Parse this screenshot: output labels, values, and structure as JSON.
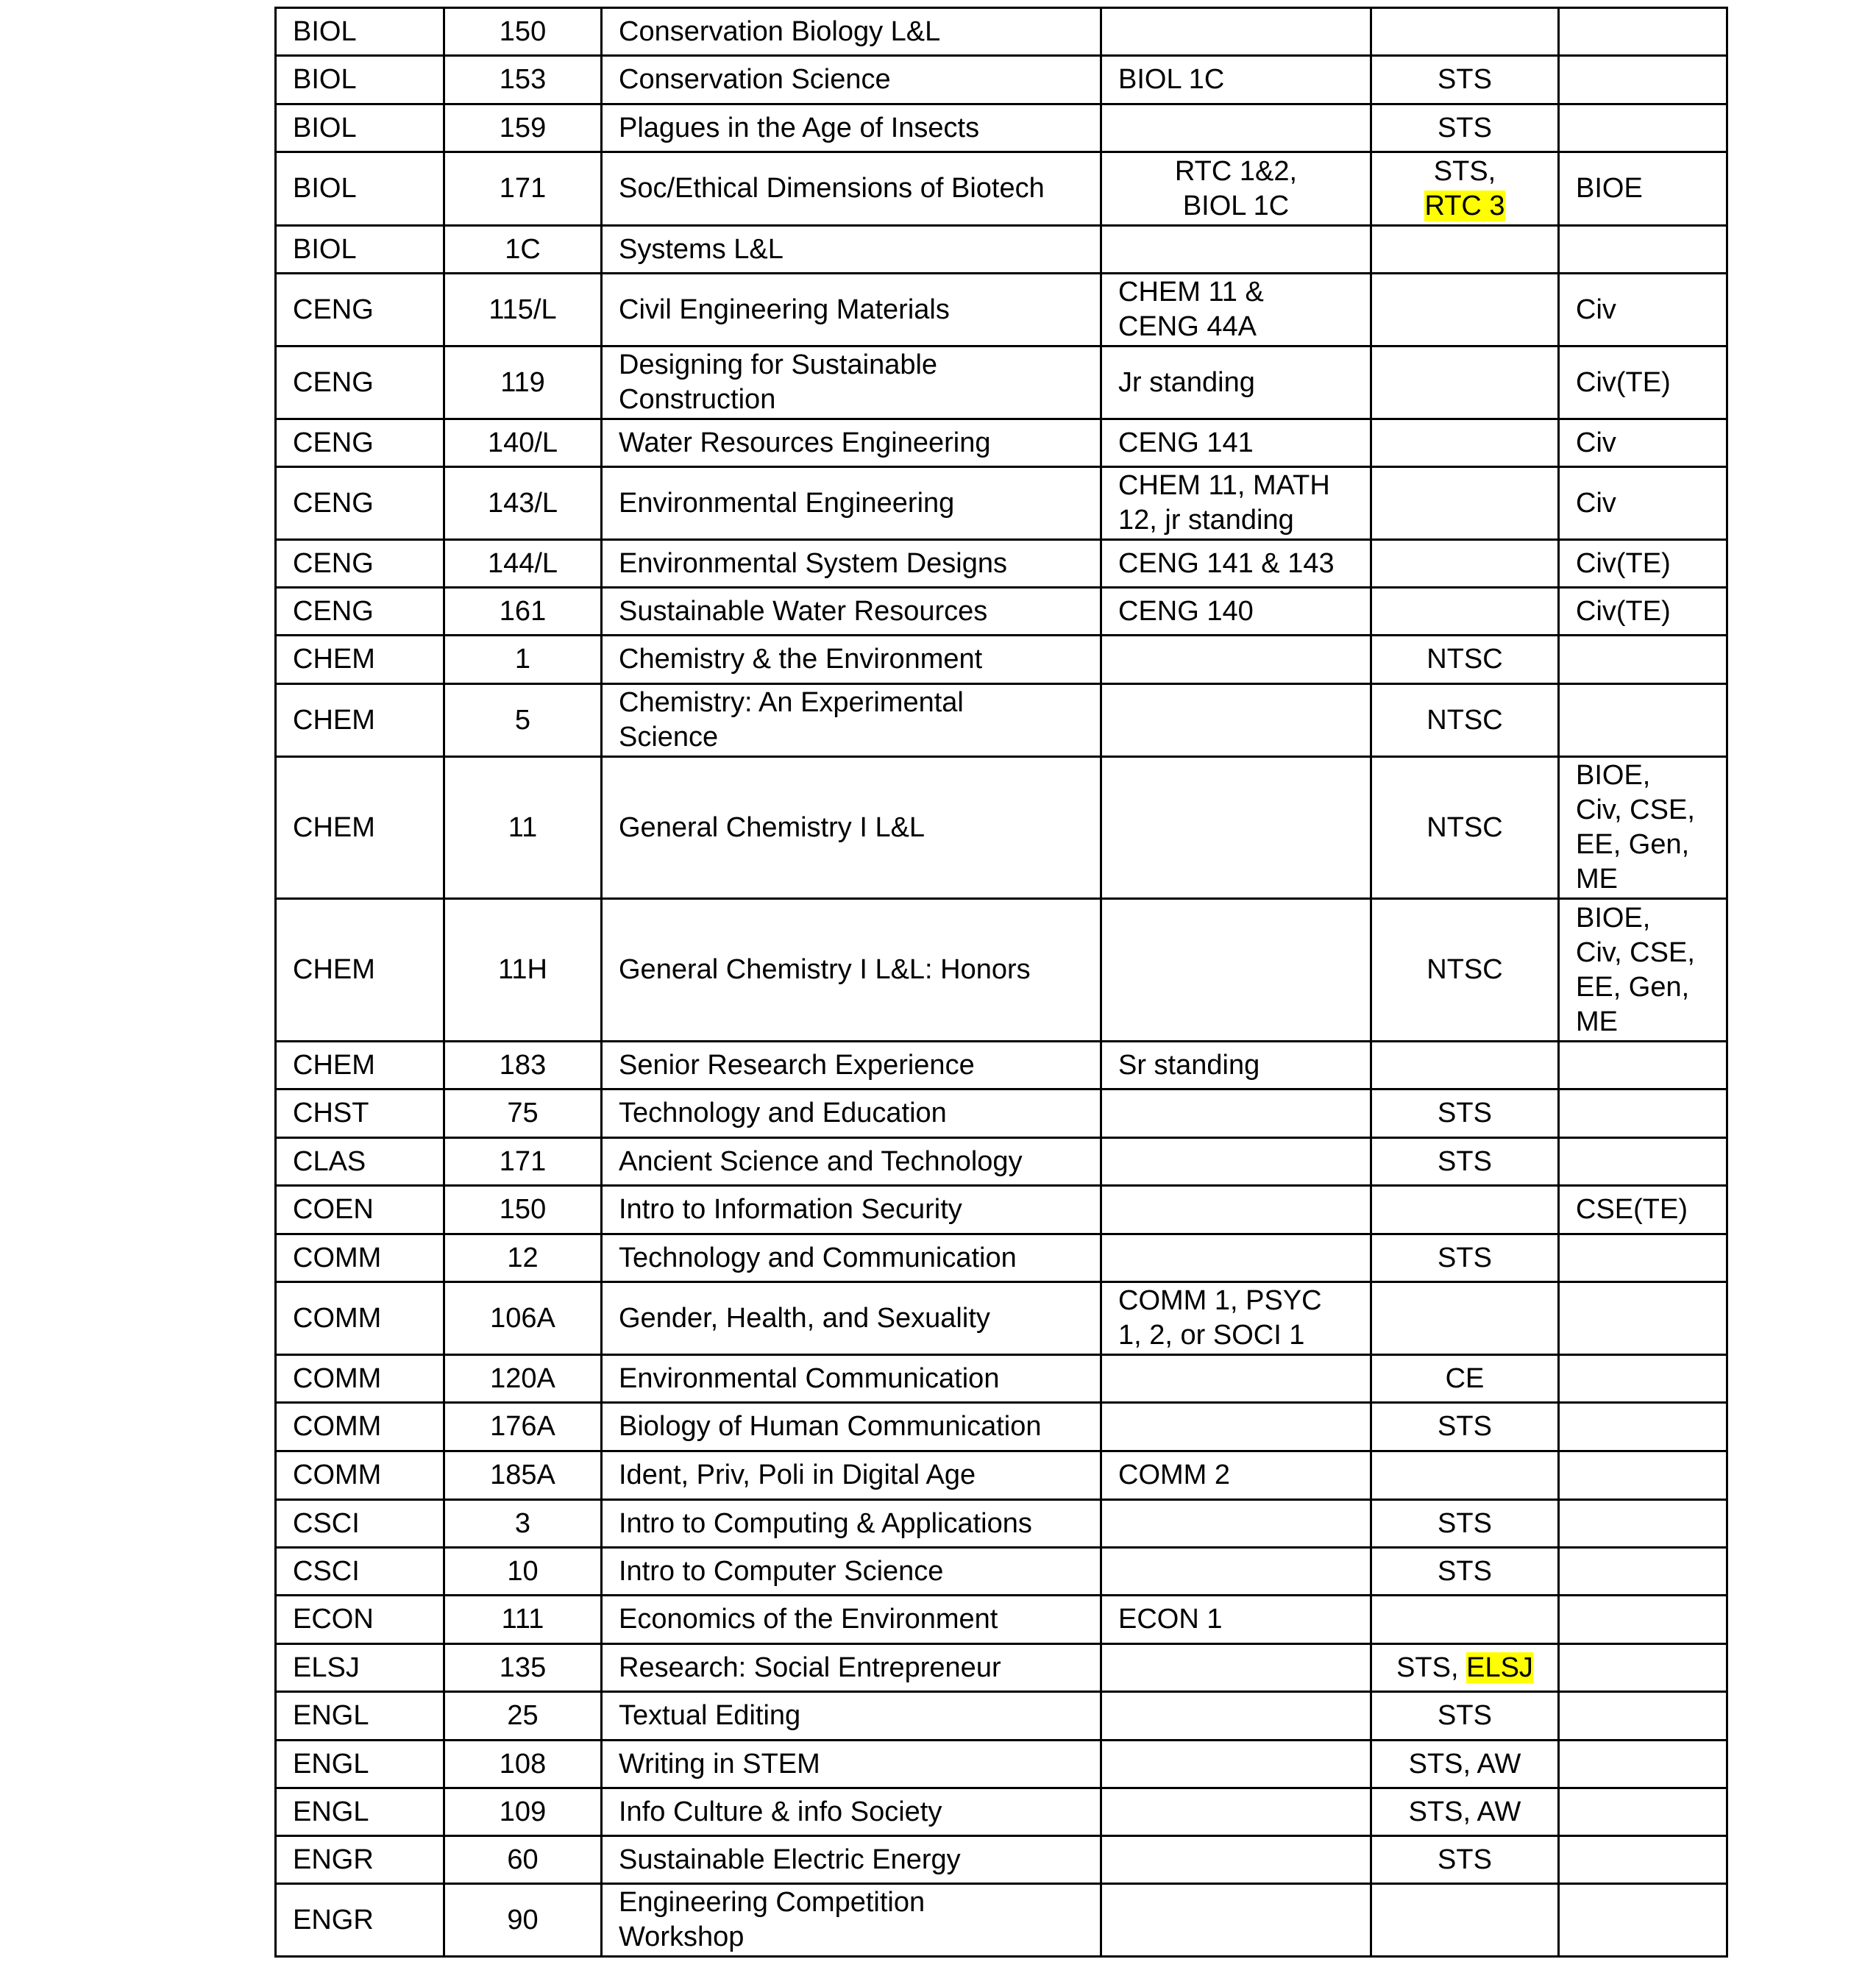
{
  "table": {
    "highlight_color": "#ffff00",
    "rows": [
      {
        "subject": "BIOL",
        "number": "150",
        "title": "Conservation Biology L&L",
        "prereq": "",
        "designation": "",
        "designation_highlight": "",
        "major": ""
      },
      {
        "subject": "BIOL",
        "number": "153",
        "title": "Conservation Science",
        "prereq": "BIOL 1C",
        "designation": "STS",
        "designation_highlight": "",
        "major": ""
      },
      {
        "subject": "BIOL",
        "number": "159",
        "title": "Plagues in the Age of Insects",
        "prereq": "",
        "designation": "STS",
        "designation_highlight": "",
        "major": ""
      },
      {
        "subject": "BIOL",
        "number": "171",
        "title": "Soc/Ethical Dimensions of Biotech",
        "prereq": "RTC 1&2,\nBIOL 1C",
        "designation": "STS,\n",
        "designation_highlight": "RTC 3",
        "major": "BIOE"
      },
      {
        "subject": "BIOL",
        "number": "1C",
        "title": "Systems L&L",
        "prereq": "",
        "designation": "",
        "designation_highlight": "",
        "major": ""
      },
      {
        "subject": "CENG",
        "number": "115/L",
        "title": "Civil Engineering Materials",
        "prereq": "CHEM 11 &\nCENG 44A",
        "designation": "",
        "designation_highlight": "",
        "major": "Civ"
      },
      {
        "subject": "CENG",
        "number": "119",
        "title": "Designing for Sustainable\nConstruction",
        "prereq": "Jr standing",
        "designation": "",
        "designation_highlight": "",
        "major": "Civ(TE)"
      },
      {
        "subject": "CENG",
        "number": "140/L",
        "title": "Water Resources Engineering",
        "prereq": "CENG 141",
        "designation": "",
        "designation_highlight": "",
        "major": "Civ"
      },
      {
        "subject": "CENG",
        "number": "143/L",
        "title": "Environmental Engineering",
        "prereq": "CHEM 11, MATH\n12, jr standing",
        "designation": "",
        "designation_highlight": "",
        "major": "Civ"
      },
      {
        "subject": "CENG",
        "number": "144/L",
        "title": "Environmental System Designs",
        "prereq": "CENG 141 & 143",
        "designation": "",
        "designation_highlight": "",
        "major": "Civ(TE)"
      },
      {
        "subject": "CENG",
        "number": "161",
        "title": "Sustainable Water Resources",
        "prereq": "CENG 140",
        "designation": "",
        "designation_highlight": "",
        "major": "Civ(TE)"
      },
      {
        "subject": "CHEM",
        "number": "1",
        "title": "Chemistry & the Environment",
        "prereq": "",
        "designation": "NTSC",
        "designation_highlight": "",
        "major": ""
      },
      {
        "subject": "CHEM",
        "number": "5",
        "title": "Chemistry: An Experimental\nScience",
        "prereq": "",
        "designation": "NTSC",
        "designation_highlight": "",
        "major": ""
      },
      {
        "subject": "CHEM",
        "number": "11",
        "title": "General Chemistry I  L&L",
        "prereq": "",
        "designation": "NTSC",
        "designation_highlight": "",
        "major": "BIOE,\nCiv, CSE,\nEE, Gen,\nME"
      },
      {
        "subject": "CHEM",
        "number": "11H",
        "title": "General Chemistry I L&L: Honors",
        "prereq": "",
        "designation": "NTSC",
        "designation_highlight": "",
        "major": "BIOE,\nCiv, CSE,\nEE, Gen,\nME"
      },
      {
        "subject": "CHEM",
        "number": "183",
        "title": "Senior Research Experience",
        "prereq": "Sr standing",
        "designation": "",
        "designation_highlight": "",
        "major": ""
      },
      {
        "subject": "CHST",
        "number": "75",
        "title": "Technology and Education",
        "prereq": "",
        "designation": "STS",
        "designation_highlight": "",
        "major": ""
      },
      {
        "subject": "CLAS",
        "number": "171",
        "title": "Ancient Science and Technology",
        "prereq": "",
        "designation": "STS",
        "designation_highlight": "",
        "major": ""
      },
      {
        "subject": "COEN",
        "number": "150",
        "title": "Intro to Information Security",
        "prereq": "",
        "designation": "",
        "designation_highlight": "",
        "major": "CSE(TE)"
      },
      {
        "subject": "COMM",
        "number": "12",
        "title": "Technology and Communication",
        "prereq": "",
        "designation": "STS",
        "designation_highlight": "",
        "major": ""
      },
      {
        "subject": "COMM",
        "number": "106A",
        "title": "Gender, Health, and Sexuality",
        "prereq": "COMM 1, PSYC\n1, 2, or SOCI 1",
        "designation": "",
        "designation_highlight": "",
        "major": ""
      },
      {
        "subject": "COMM",
        "number": "120A",
        "title": "Environmental Communication",
        "prereq": "",
        "designation": "CE",
        "designation_highlight": "",
        "major": ""
      },
      {
        "subject": "COMM",
        "number": "176A",
        "title": "Biology of Human Communication",
        "prereq": "",
        "designation": "STS",
        "designation_highlight": "",
        "major": ""
      },
      {
        "subject": "COMM",
        "number": "185A",
        "title": "Ident, Priv, Poli in Digital Age",
        "prereq": "COMM 2",
        "designation": "",
        "designation_highlight": "",
        "major": ""
      },
      {
        "subject": "CSCI",
        "number": "3",
        "title": "Intro to Computing & Applications",
        "prereq": "",
        "designation": "STS",
        "designation_highlight": "",
        "major": ""
      },
      {
        "subject": "CSCI",
        "number": "10",
        "title": "Intro to Computer Science",
        "prereq": "",
        "designation": "STS",
        "designation_highlight": "",
        "major": ""
      },
      {
        "subject": "ECON",
        "number": "111",
        "title": "Economics of the Environment",
        "prereq": "ECON 1",
        "designation": "",
        "designation_highlight": "",
        "major": ""
      },
      {
        "subject": "ELSJ",
        "number": "135",
        "title": "Research: Social Entrepreneur",
        "prereq": "",
        "designation": "STS, ",
        "designation_highlight": "ELSJ",
        "major": ""
      },
      {
        "subject": "ENGL",
        "number": "25",
        "title": "Textual Editing",
        "prereq": "",
        "designation": "STS",
        "designation_highlight": "",
        "major": ""
      },
      {
        "subject": "ENGL",
        "number": "108",
        "title": "Writing in STEM",
        "prereq": "",
        "designation": "STS, AW",
        "designation_highlight": "",
        "major": ""
      },
      {
        "subject": "ENGL",
        "number": "109",
        "title": "Info Culture & info Society",
        "prereq": "",
        "designation": "STS, AW",
        "designation_highlight": "",
        "major": ""
      },
      {
        "subject": "ENGR",
        "number": "60",
        "title": "Sustainable Electric Energy",
        "prereq": "",
        "designation": "STS",
        "designation_highlight": "",
        "major": ""
      },
      {
        "subject": "ENGR",
        "number": "90",
        "title": "Engineering Competition\nWorkshop",
        "prereq": "",
        "designation": "",
        "designation_highlight": "",
        "major": ""
      }
    ]
  }
}
